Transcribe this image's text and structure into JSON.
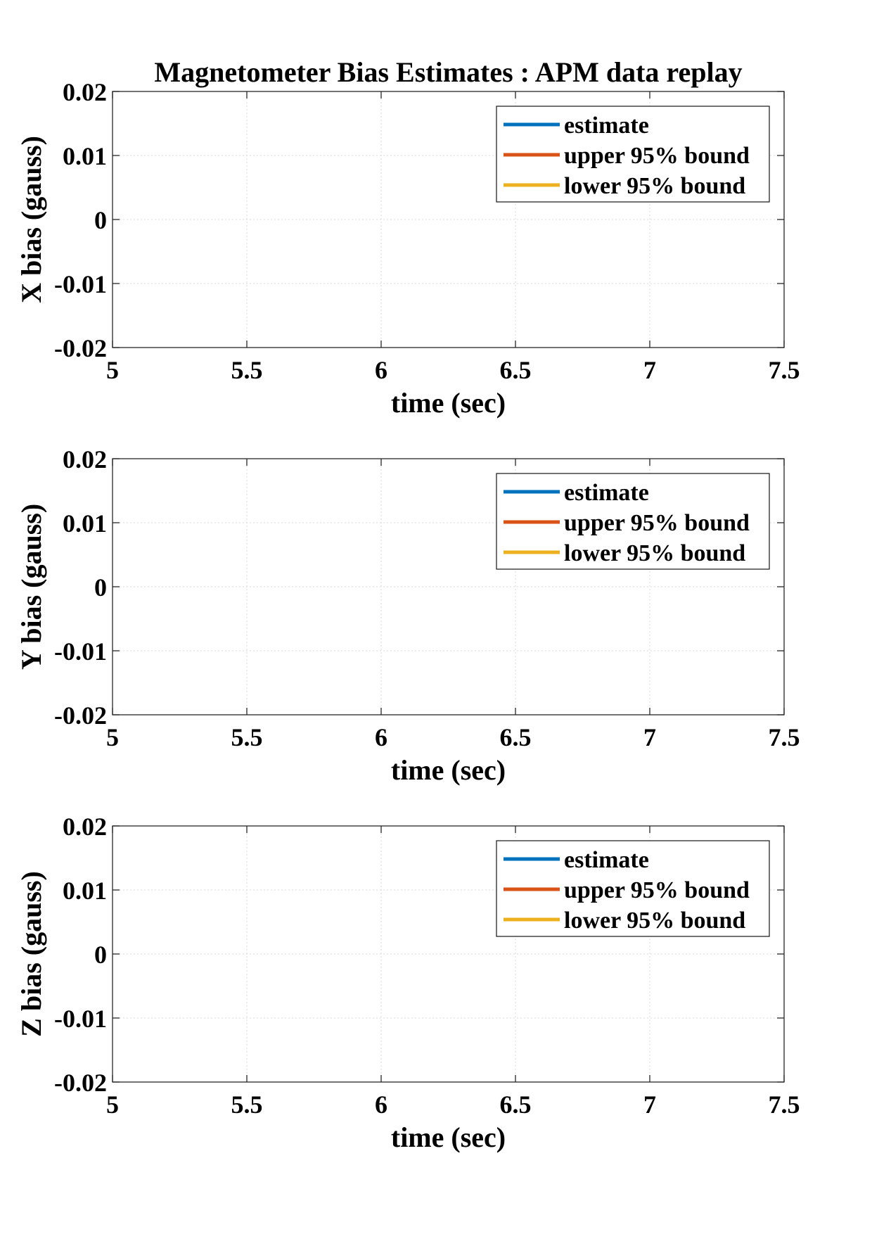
{
  "figure_title": "Magnetometer Bias Estimates : APM data replay",
  "colors": {
    "estimate": "#0072BD",
    "upper": "#D95319",
    "lower": "#EDB120",
    "grid": "#d9d9d9",
    "axis": "#262626"
  },
  "chart_data": [
    {
      "type": "line",
      "title": "Magnetometer Bias Estimates : APM data replay",
      "xlabel": "time (sec)",
      "ylabel": "X bias (gauss)",
      "xlim": [
        5,
        7.5
      ],
      "ylim": [
        -0.02,
        0.02
      ],
      "xticks": [
        5,
        5.5,
        6,
        6.5,
        7,
        7.5
      ],
      "xtick_labels": [
        "5",
        "5.5",
        "6",
        "6.5",
        "7",
        "7.5"
      ],
      "yticks": [
        -0.02,
        -0.01,
        0,
        0.01,
        0.02
      ],
      "ytick_labels": [
        "-0.02",
        "-0.01",
        "0",
        "0.01",
        "0.02"
      ],
      "grid": true,
      "legend_position": "top-right",
      "series": [
        {
          "name": "estimate",
          "x": [],
          "y": []
        },
        {
          "name": "upper 95% bound",
          "x": [],
          "y": []
        },
        {
          "name": "lower 95% bound",
          "x": [],
          "y": []
        }
      ]
    },
    {
      "type": "line",
      "title": "",
      "xlabel": "time (sec)",
      "ylabel": "Y bias (gauss)",
      "xlim": [
        5,
        7.5
      ],
      "ylim": [
        -0.02,
        0.02
      ],
      "xticks": [
        5,
        5.5,
        6,
        6.5,
        7,
        7.5
      ],
      "xtick_labels": [
        "5",
        "5.5",
        "6",
        "6.5",
        "7",
        "7.5"
      ],
      "yticks": [
        -0.02,
        -0.01,
        0,
        0.01,
        0.02
      ],
      "ytick_labels": [
        "-0.02",
        "-0.01",
        "0",
        "0.01",
        "0.02"
      ],
      "grid": true,
      "legend_position": "top-right",
      "series": [
        {
          "name": "estimate",
          "x": [],
          "y": []
        },
        {
          "name": "upper 95% bound",
          "x": [],
          "y": []
        },
        {
          "name": "lower 95% bound",
          "x": [],
          "y": []
        }
      ]
    },
    {
      "type": "line",
      "title": "",
      "xlabel": "time (sec)",
      "ylabel": "Z bias (gauss)",
      "xlim": [
        5,
        7.5
      ],
      "ylim": [
        -0.02,
        0.02
      ],
      "xticks": [
        5,
        5.5,
        6,
        6.5,
        7,
        7.5
      ],
      "xtick_labels": [
        "5",
        "5.5",
        "6",
        "6.5",
        "7",
        "7.5"
      ],
      "yticks": [
        -0.02,
        -0.01,
        0,
        0.01,
        0.02
      ],
      "ytick_labels": [
        "-0.02",
        "-0.01",
        "0",
        "0.01",
        "0.02"
      ],
      "grid": true,
      "legend_position": "top-right",
      "series": [
        {
          "name": "estimate",
          "x": [],
          "y": []
        },
        {
          "name": "upper 95% bound",
          "x": [],
          "y": []
        },
        {
          "name": "lower 95% bound",
          "x": [],
          "y": []
        }
      ]
    }
  ]
}
